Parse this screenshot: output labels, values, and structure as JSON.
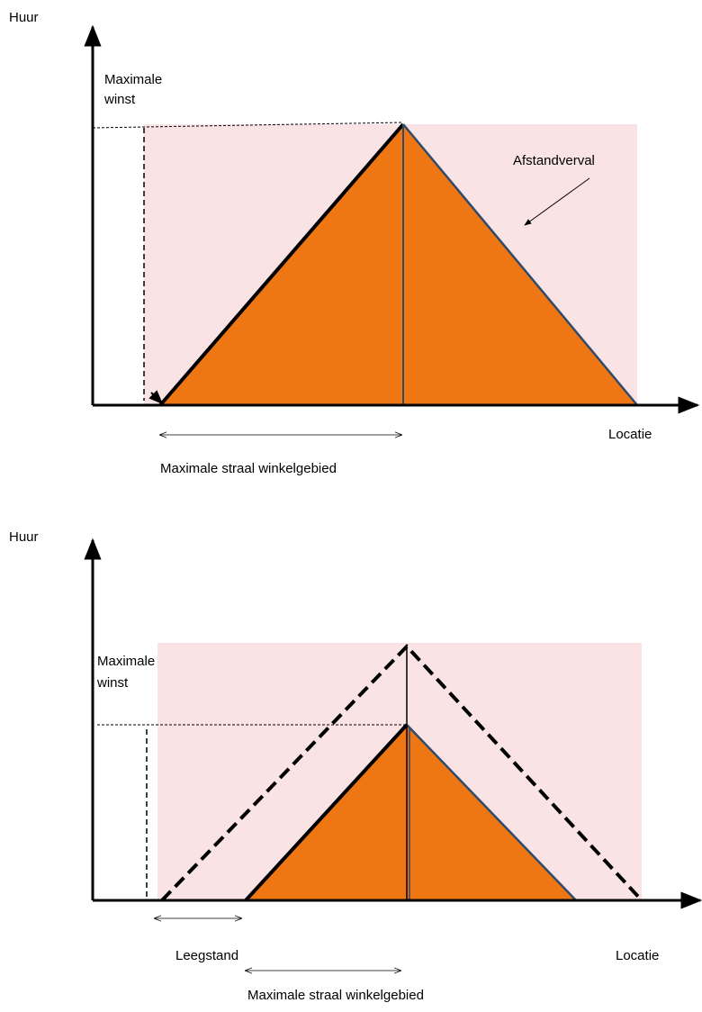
{
  "diagrams": [
    {
      "y_axis_label": "Huur",
      "max_label": [
        "Maximale",
        "winst"
      ],
      "decay_label": "Afstandverval",
      "x_axis_label": "Locatie",
      "radius_label": "Maximale straal winkelgebied"
    },
    {
      "y_axis_label": "Huur",
      "max_label": [
        "Maximale",
        "winst"
      ],
      "x_axis_label": "Locatie",
      "vacancy_label": "Leegstand",
      "radius_label": "Maximale straal winkelgebied"
    }
  ]
}
